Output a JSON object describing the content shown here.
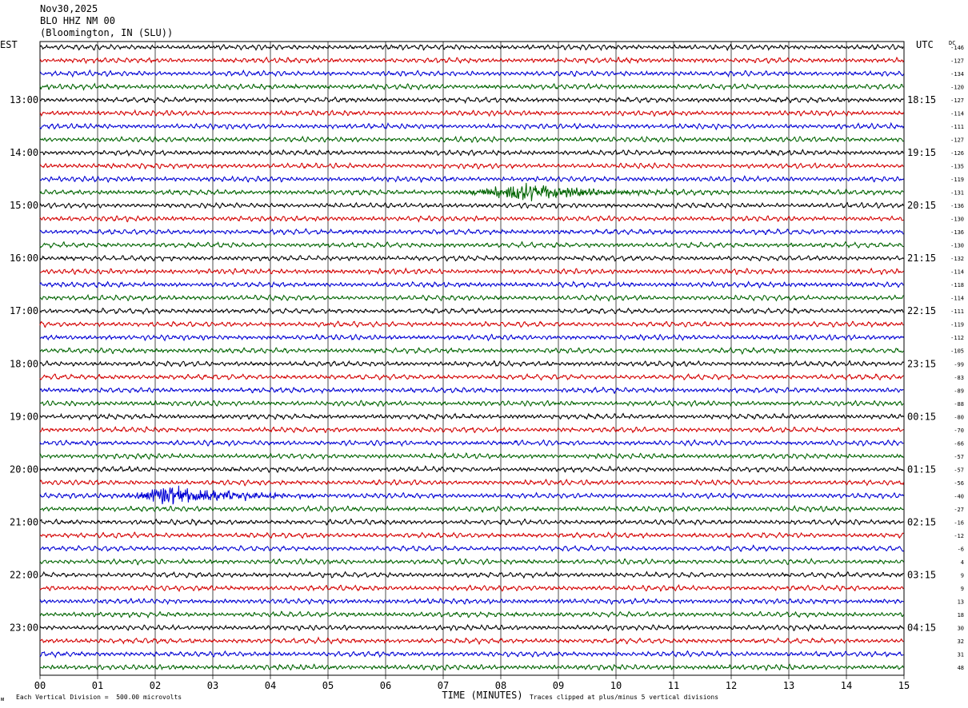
{
  "header": {
    "date": "Nov30,2025",
    "station": "BLO HHZ NM 00",
    "location": "(Bloomington, IN (SLU))"
  },
  "labels": {
    "left_tz": "EST",
    "right_tz": "UTC",
    "dc": "DC",
    "scale_note": "Each Vertical Division =  500.00 microvolts",
    "clip_note": "Traces clipped at plus/minus 5 vertical divisions",
    "corner_glyph": "ᴍ"
  },
  "colors": {
    "trace_cycle": [
      "#000000",
      "#d40000",
      "#0000d4",
      "#006400"
    ],
    "grid": "#000000",
    "background": "#ffffff"
  },
  "chart_data": {
    "type": "line",
    "title": "",
    "xlabel": "TIME (MINUTES)",
    "ylabel": "",
    "xlim": [
      0,
      15
    ],
    "x_ticks": [
      "00",
      "01",
      "02",
      "03",
      "04",
      "05",
      "06",
      "07",
      "08",
      "09",
      "10",
      "11",
      "12",
      "13",
      "14",
      "15"
    ],
    "grid": "vertical lines at each minute",
    "rows_per_hour": 4,
    "row_minutes": 15,
    "left_hour_labels": [
      "13:00",
      "14:00",
      "15:00",
      "16:00",
      "17:00",
      "18:00",
      "19:00",
      "20:00",
      "21:00",
      "22:00",
      "23:00"
    ],
    "right_hour_labels": [
      "18:15",
      "19:15",
      "20:15",
      "21:15",
      "22:15",
      "23:15",
      "00:15",
      "01:15",
      "02:15",
      "03:15",
      "04:15"
    ],
    "dc_offsets": [
      -146,
      -127,
      -134,
      -120,
      -127,
      -114,
      -111,
      -127,
      -126,
      -135,
      -119,
      -131,
      -136,
      -130,
      -136,
      -130,
      -132,
      -114,
      -118,
      -114,
      -111,
      -119,
      -112,
      -105,
      -99,
      -83,
      -89,
      -88,
      -80,
      -70,
      -66,
      -57,
      -57,
      -56,
      -40,
      -27,
      -16,
      -12,
      -6,
      4,
      9,
      9,
      13,
      18,
      30,
      32,
      31,
      48
    ],
    "events": [
      {
        "row": 11,
        "start_min": 7.0,
        "end_min": 11.0,
        "peak_min": 8.4,
        "amplitude_divisions": 2.0
      },
      {
        "row": 34,
        "start_min": 1.2,
        "end_min": 5.2,
        "peak_min": 2.3,
        "amplitude_divisions": 2.2
      }
    ]
  }
}
